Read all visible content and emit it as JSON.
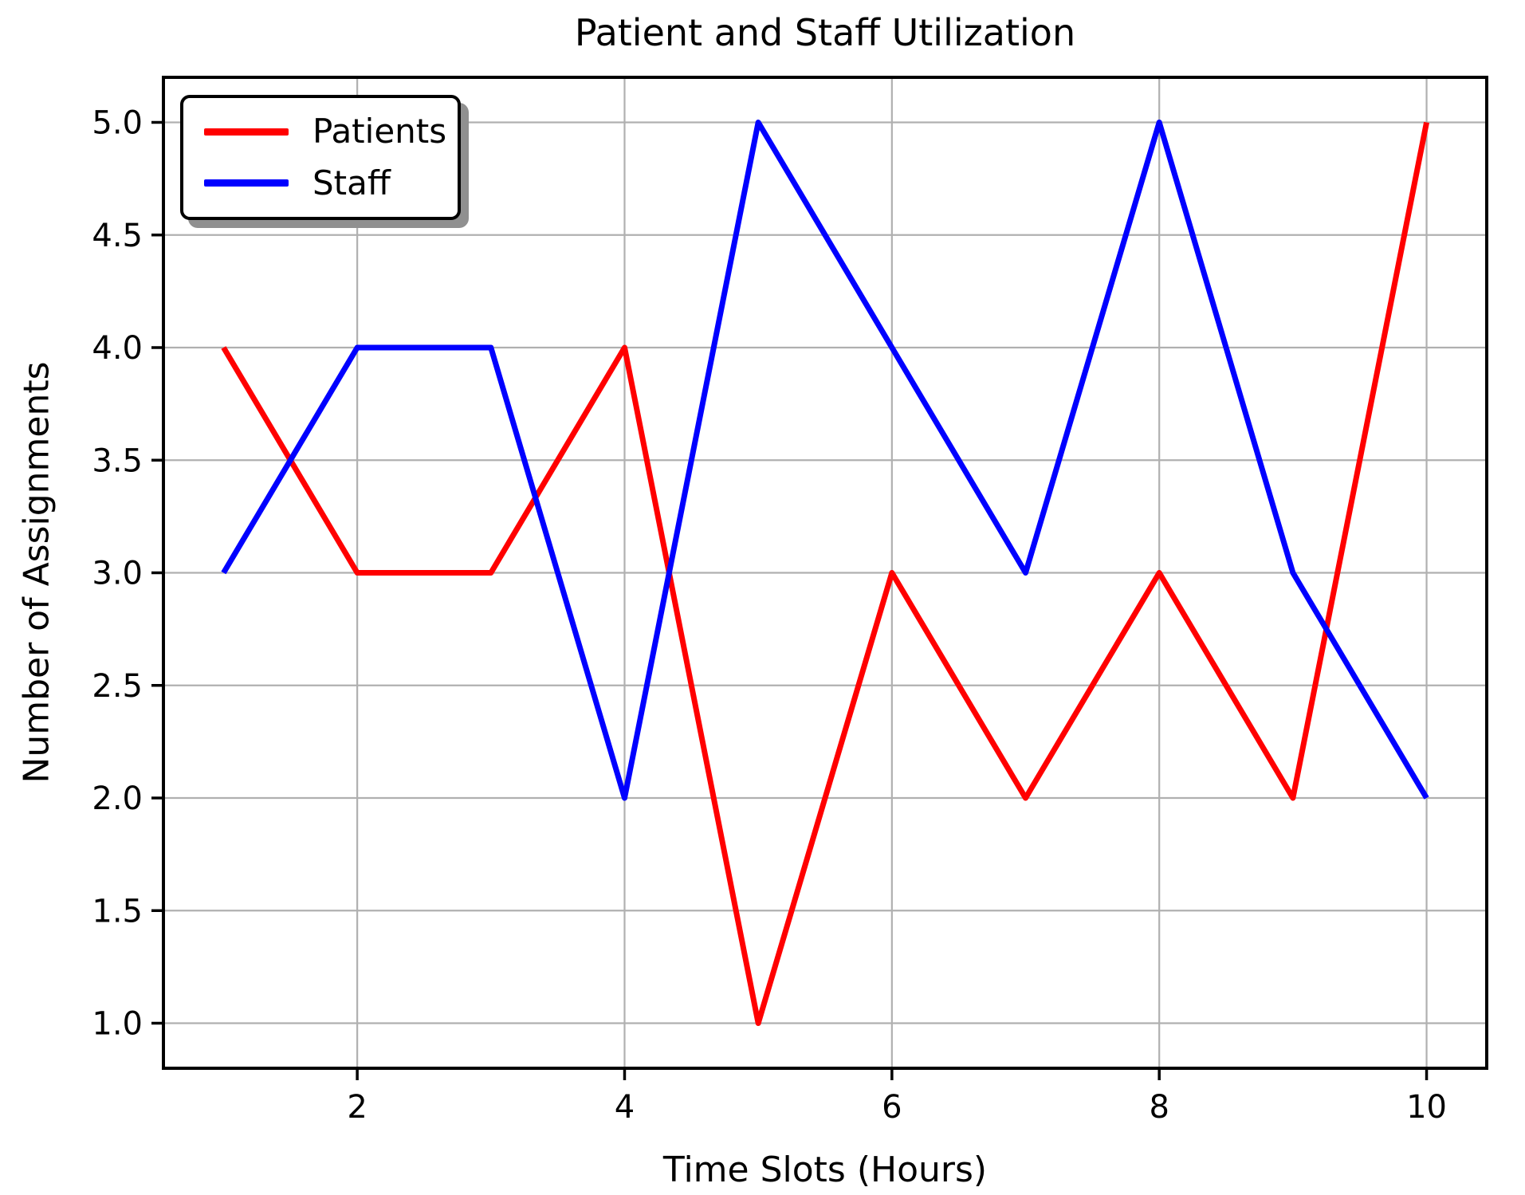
{
  "chart_data": {
    "type": "line",
    "title": "Patient and Staff Utilization",
    "xlabel": "Time Slots (Hours)",
    "ylabel": "Number of Assignments",
    "x": [
      1,
      2,
      3,
      4,
      5,
      6,
      7,
      8,
      9,
      10
    ],
    "series": [
      {
        "name": "Patients",
        "color": "#ff0000",
        "values": [
          4,
          3,
          3,
          4,
          1,
          3,
          2,
          3,
          2,
          5
        ]
      },
      {
        "name": "Staff",
        "color": "#0000ff",
        "values": [
          3,
          4,
          4,
          2,
          5,
          4,
          3,
          5,
          3,
          2
        ]
      }
    ],
    "xlim": [
      0.55,
      10.45
    ],
    "ylim": [
      0.8,
      5.2
    ],
    "xticks": {
      "values": [
        2,
        4,
        6,
        8,
        10
      ],
      "labels": [
        "2",
        "4",
        "6",
        "8",
        "10"
      ]
    },
    "yticks": {
      "values": [
        1.0,
        1.5,
        2.0,
        2.5,
        3.0,
        3.5,
        4.0,
        4.5,
        5.0
      ],
      "labels": [
        "1.0",
        "1.5",
        "2.0",
        "2.5",
        "3.0",
        "3.5",
        "4.0",
        "4.5",
        "5.0"
      ]
    },
    "grid": true,
    "grid_color": "#b0b0b0",
    "axis_color": "#000000",
    "legend": {
      "position": "upper-left",
      "labels": [
        "Patients",
        "Staff"
      ]
    }
  }
}
